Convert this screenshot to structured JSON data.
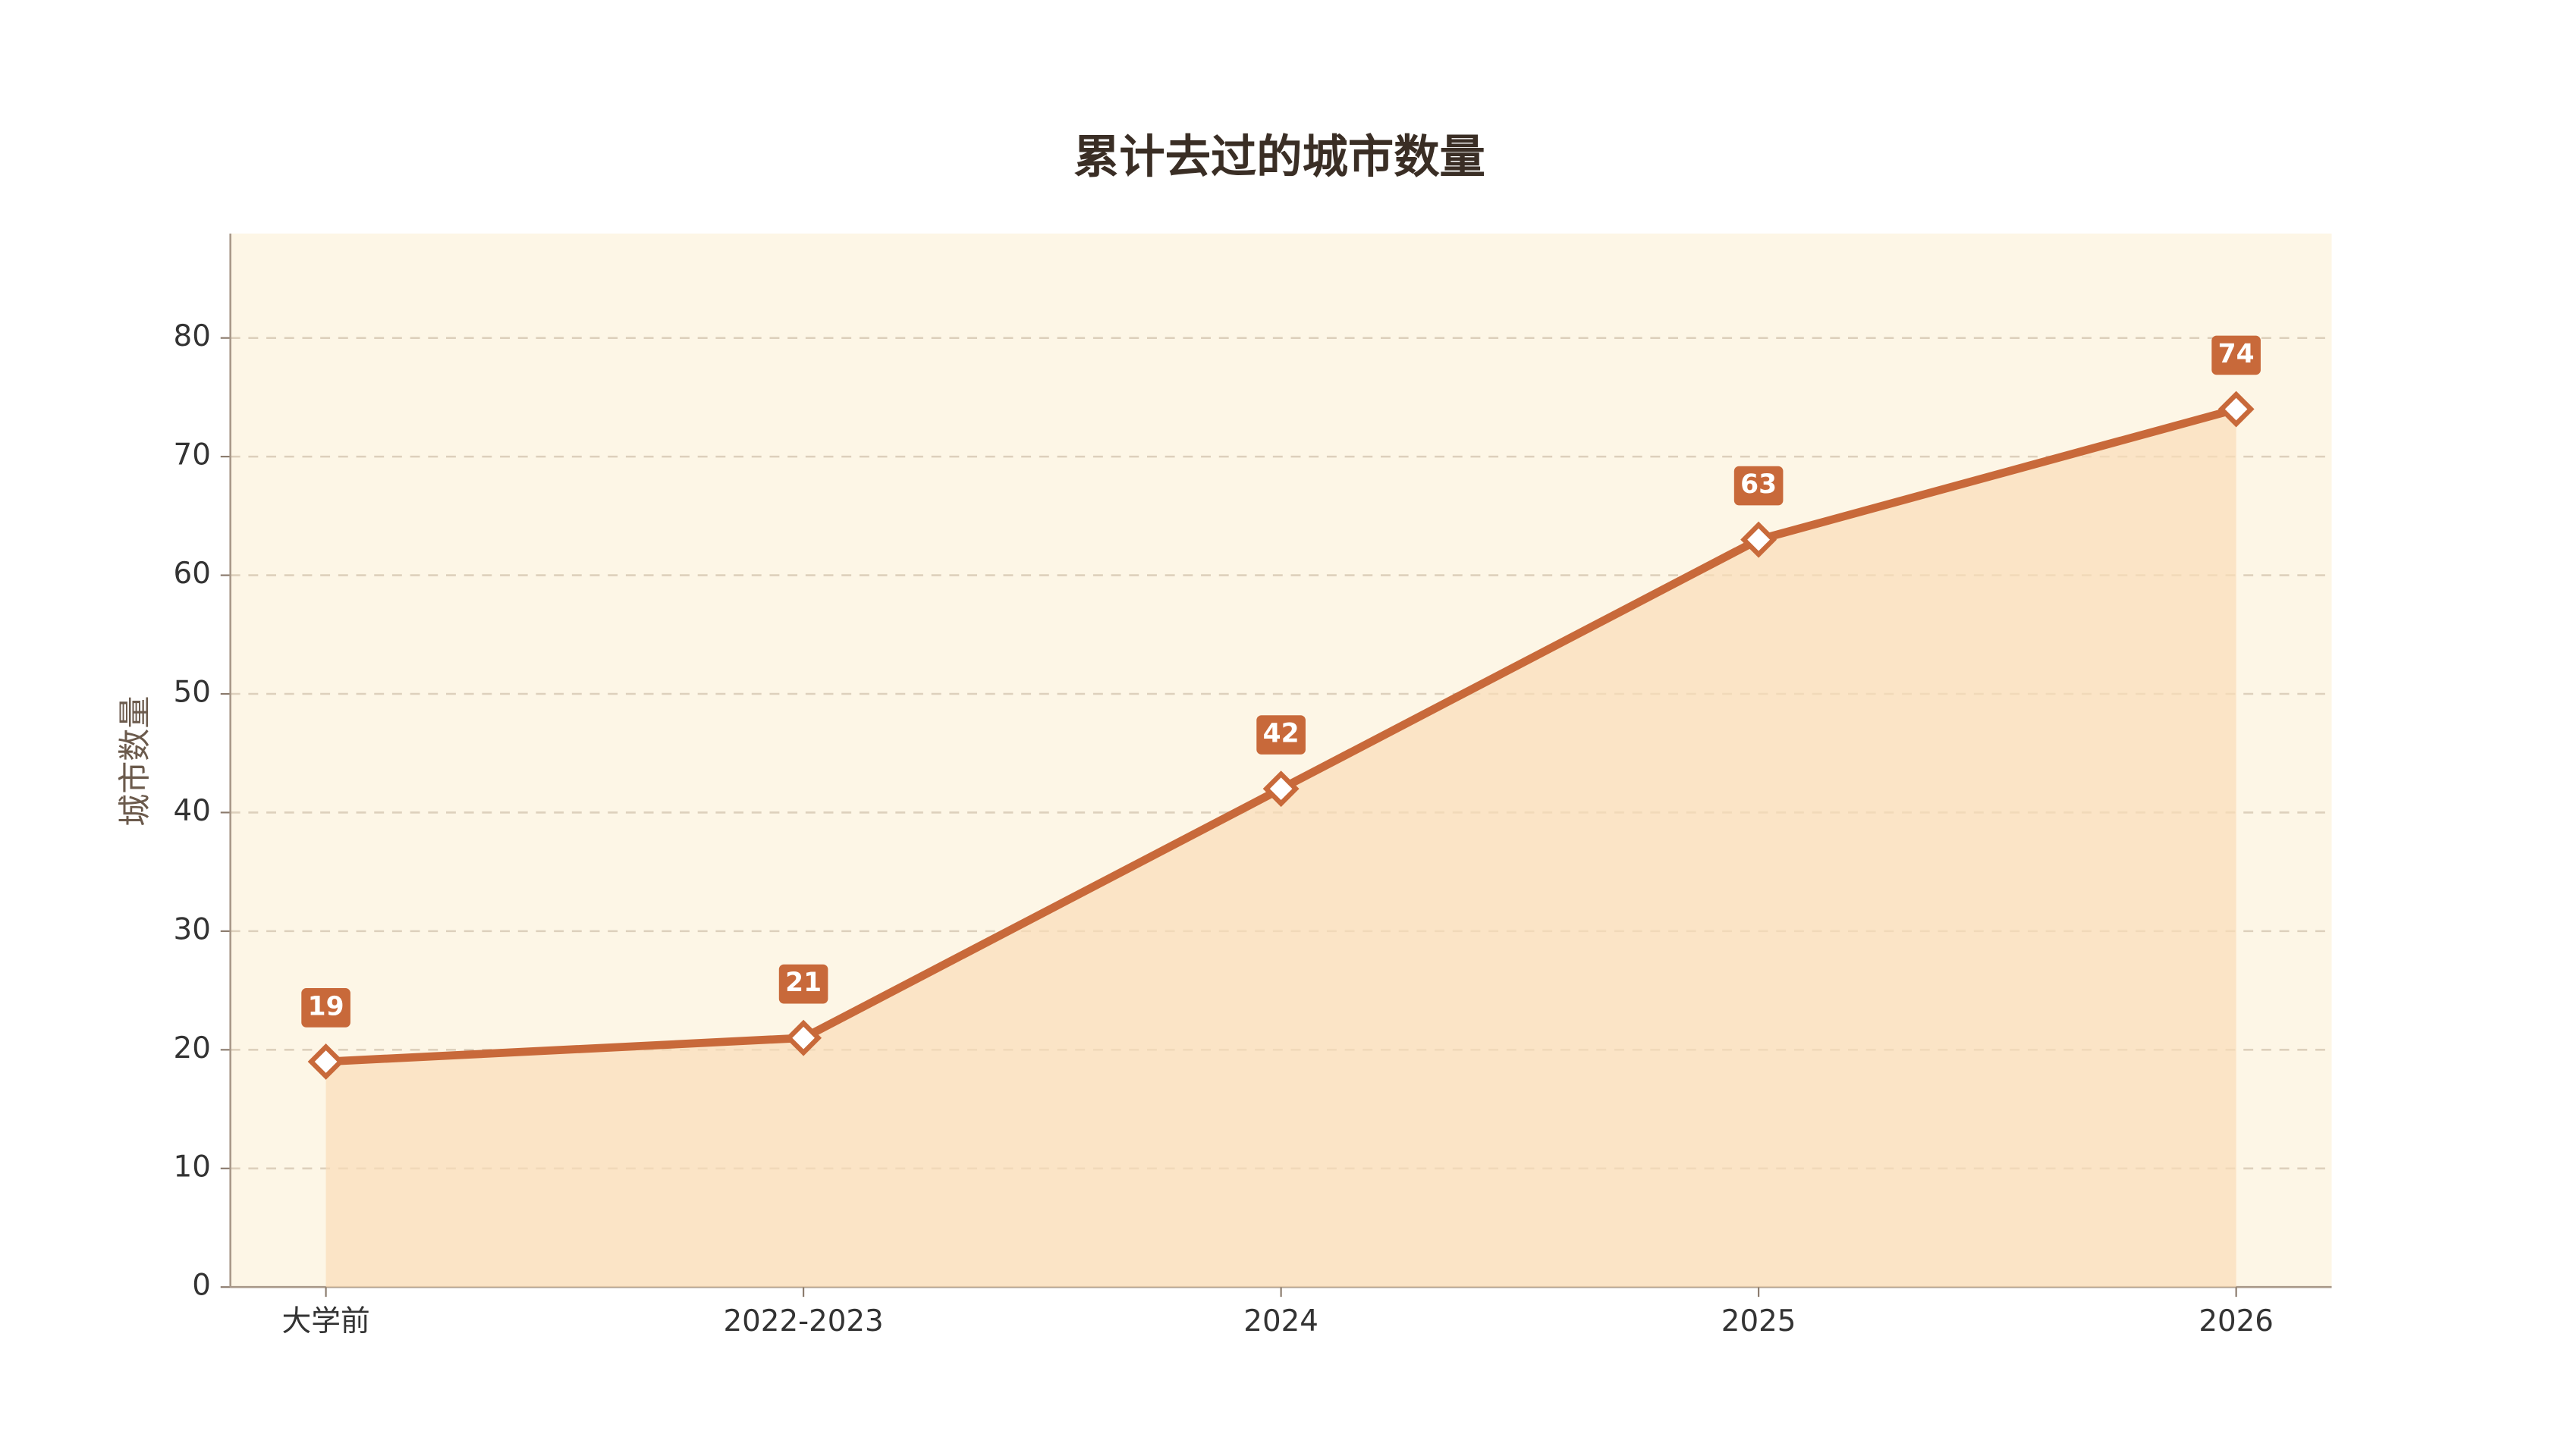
{
  "chart_data": {
    "type": "line",
    "title": "累计去过的城市数量",
    "y_label": "城市数量",
    "categories": [
      "大学前",
      "2022-2023",
      "2024",
      "2025",
      "2026"
    ],
    "series": [
      {
        "name": "城市数量",
        "color": "#c8693a",
        "values": [
          19,
          21,
          42,
          63,
          74
        ]
      }
    ],
    "ylim": [
      0,
      88.8
    ],
    "yticks": [
      0,
      10,
      20,
      30,
      40,
      50,
      60,
      70,
      80
    ],
    "grid": true,
    "area": true
  }
}
